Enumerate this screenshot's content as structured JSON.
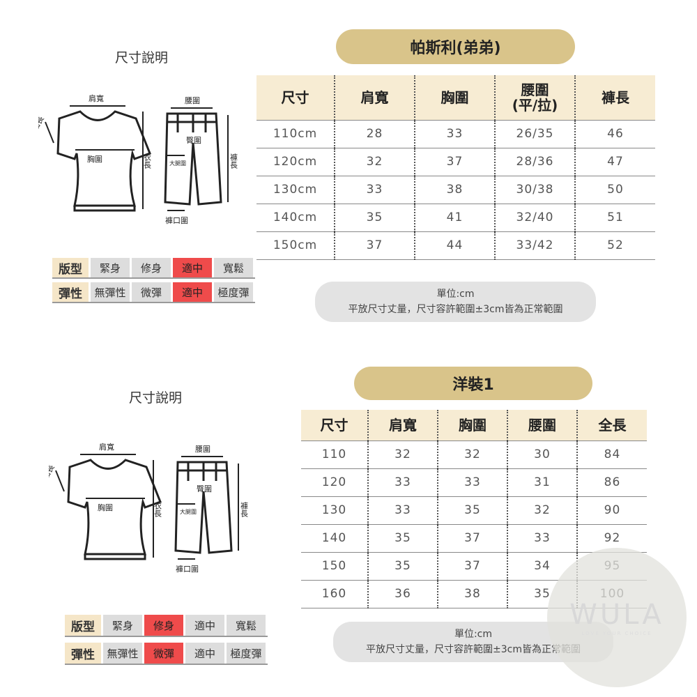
{
  "sections": [
    {
      "diagram_title": "尺寸說明",
      "diagram_labels": {
        "shoulder": "肩寬",
        "sleeve": "袖長",
        "chest": "胸圍",
        "length": "衣長",
        "waist": "腰圍",
        "hip": "臀圍",
        "thigh": "大腿圍",
        "pants_length": "褲長",
        "hem": "褲口圍"
      },
      "fit": {
        "label": "版型",
        "options": [
          "緊身",
          "修身",
          "適中",
          "寬鬆"
        ],
        "selected": "適中"
      },
      "stretch": {
        "label": "彈性",
        "options": [
          "無彈性",
          "微彈",
          "適中",
          "極度彈"
        ],
        "selected": "適中"
      },
      "table_title": "帕斯利(弟弟)",
      "headers": [
        "尺寸",
        "肩寬",
        "胸圍",
        "腰圍\n(平/拉)",
        "褲長"
      ],
      "rows": [
        [
          "110cm",
          "28",
          "33",
          "26/35",
          "46"
        ],
        [
          "120cm",
          "32",
          "37",
          "28/36",
          "47"
        ],
        [
          "130cm",
          "33",
          "38",
          "30/38",
          "50"
        ],
        [
          "140cm",
          "35",
          "41",
          "32/40",
          "51"
        ],
        [
          "150cm",
          "37",
          "44",
          "33/42",
          "52"
        ]
      ],
      "note_unit": "單位:cm",
      "note_text": "平放尺寸丈量，尺寸容許範圍±3cm皆為正常範圍"
    },
    {
      "diagram_title": "尺寸說明",
      "diagram_labels": {
        "shoulder": "肩寬",
        "sleeve": "袖長",
        "chest": "胸圍",
        "length": "衣長",
        "waist": "腰圍",
        "hip": "臀圍",
        "thigh": "大腿圍",
        "pants_length": "褲長",
        "hem": "褲口圍"
      },
      "fit": {
        "label": "版型",
        "options": [
          "緊身",
          "修身",
          "適中",
          "寬鬆"
        ],
        "selected": "修身"
      },
      "stretch": {
        "label": "彈性",
        "options": [
          "無彈性",
          "微彈",
          "適中",
          "極度彈"
        ],
        "selected": "微彈"
      },
      "table_title": "洋裝1",
      "headers": [
        "尺寸",
        "肩寬",
        "胸圍",
        "腰圍",
        "全長"
      ],
      "rows": [
        [
          "110",
          "32",
          "32",
          "30",
          "84"
        ],
        [
          "120",
          "33",
          "33",
          "31",
          "86"
        ],
        [
          "130",
          "33",
          "35",
          "32",
          "90"
        ],
        [
          "140",
          "35",
          "37",
          "33",
          "92"
        ],
        [
          "150",
          "35",
          "37",
          "34",
          "95"
        ],
        [
          "160",
          "36",
          "38",
          "35",
          "100"
        ]
      ],
      "note_unit": "單位:cm",
      "note_text": "平放尺寸丈量，尺寸容許範圍±3cm皆為正常範圍"
    }
  ],
  "watermark": {
    "brand": "WULA",
    "tagline": "LOVE YOUR CHOICE"
  },
  "colors": {
    "accent": "#d9c48a",
    "header_bg": "#f7ecd3",
    "selected": "#ef4b4b"
  }
}
